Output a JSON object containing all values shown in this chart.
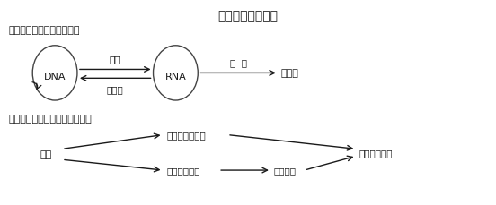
{
  "title": "基因对性状的控制",
  "section1_label": "一、中心法则的提出和发展",
  "section2_label": "二、基因、蛋白质与性状的关系",
  "dna_label": "DNA",
  "rna_label": "RNA",
  "protein_label": "蛋白质",
  "arrow1_label": "转录",
  "arrow2_label": "逆转录",
  "arrow3_label": "翻  译",
  "gene_label": "基因",
  "box1_label": "控制蛋白质结构",
  "box2_label": "控制酶的合成",
  "box3_label": "控制代谢",
  "box4_label": "控制生物性状",
  "bg_color": "#ffffff",
  "text_color": "#1a1a1a",
  "arrow_color": "#1a1a1a",
  "ellipse_color": "#444444"
}
